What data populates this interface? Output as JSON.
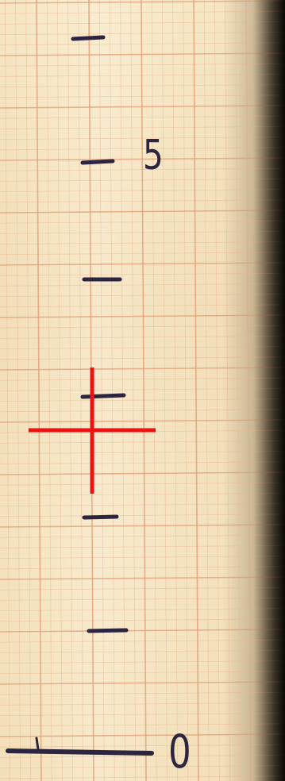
{
  "ruler": {
    "labels": {
      "upper": "5",
      "lower": "0"
    }
  },
  "colors": {
    "paper": "#f4e2bd",
    "grid_fine": "#e8b896",
    "grid_major": "#e09a72",
    "ink": "#2b2540",
    "crosshair": "#ee1111",
    "background": "#0c0a07"
  },
  "icons": {
    "crosshair": "crosshair-icon"
  }
}
